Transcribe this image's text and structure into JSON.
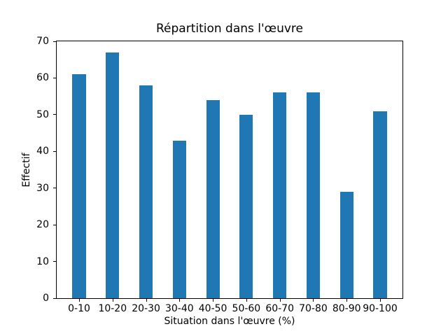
{
  "figure": {
    "background": "#ffffff"
  },
  "chart_data": {
    "type": "bar",
    "title": "Répartition dans l'œuvre",
    "xlabel": "Situation dans l'œuvre (%)",
    "ylabel": "Effectif",
    "categories": [
      "0-10",
      "10-20",
      "20-30",
      "30-40",
      "40-50",
      "50-60",
      "60-70",
      "70-80",
      "80-90",
      "90-100"
    ],
    "values": [
      61,
      67,
      58,
      43,
      54,
      50,
      56,
      56,
      29,
      51
    ],
    "ylim": [
      0,
      70
    ],
    "yticks": [
      0,
      10,
      20,
      30,
      40,
      50,
      60,
      70
    ],
    "xlim": [
      -0.67,
      9.67
    ],
    "bar_width": 0.4,
    "bar_color": "#1f77b4",
    "axis_color": "#000000",
    "grid": false,
    "legend": false
  }
}
